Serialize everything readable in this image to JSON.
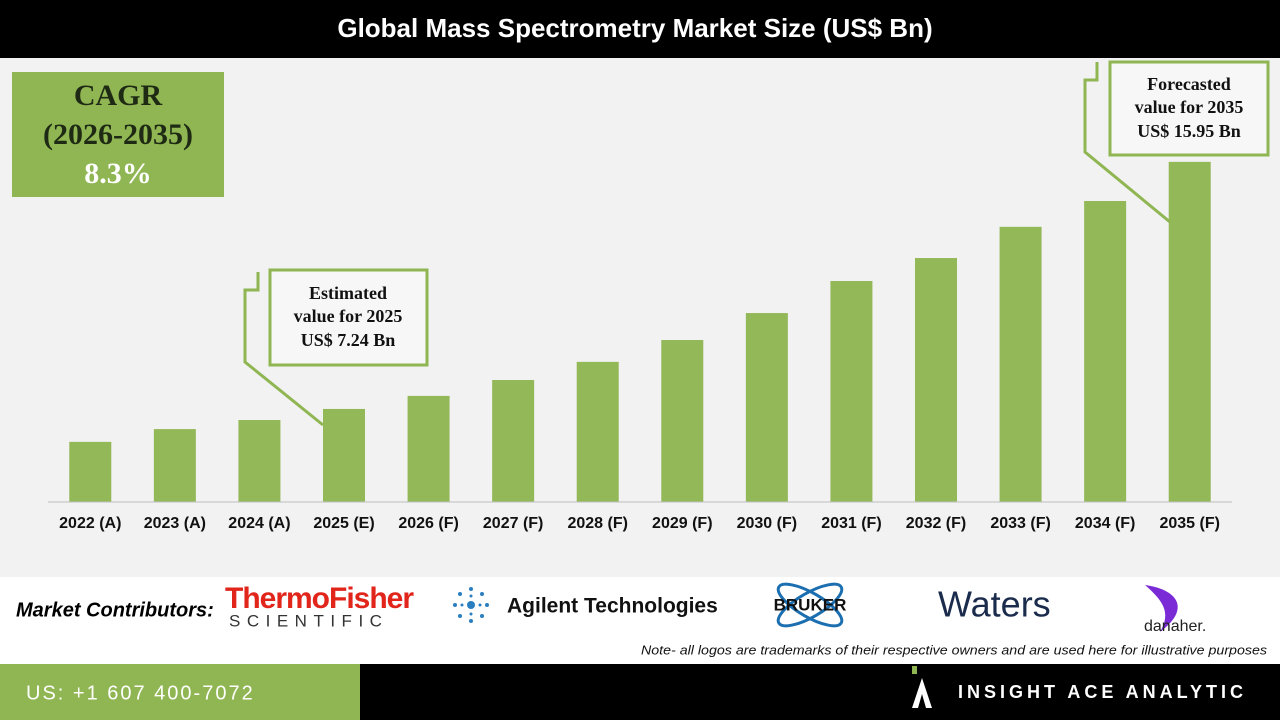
{
  "chart_data": {
    "type": "bar",
    "title": "Global Mass Spectrometry Market Size (US$ Bn)",
    "categories": [
      "2022 (A)",
      "2023 (A)",
      "2024 (A)",
      "2025 (E)",
      "2026 (F)",
      "2027 (F)",
      "2028 (F)",
      "2029 (F)",
      "2030 (F)",
      "2031 (F)",
      "2032 (F)",
      "2033 (F)",
      "2034 (F)",
      "2035 (F)"
    ],
    "values": [
      6.08,
      6.53,
      6.85,
      7.24,
      7.7,
      8.26,
      8.9,
      9.67,
      10.62,
      11.75,
      12.56,
      13.66,
      14.57,
      15.95
    ],
    "color": "#93b858",
    "ylim": [
      3.96,
      19.47
    ],
    "annotations": [
      {
        "lines": [
          "Estimated",
          "value for 2025",
          "US$ 7.24 Bn"
        ]
      },
      {
        "lines": [
          "Forecasted",
          "value for 2035",
          "US$ 15.95 Bn"
        ]
      }
    ]
  },
  "cagr": {
    "label": "CAGR",
    "period": "(2026-2035)",
    "value": "8.3%"
  },
  "contributors": {
    "label": "Market Contributors:",
    "logos": [
      "ThermoFisher",
      "SCIENTIFIC",
      "Agilent Technologies",
      "BRUKER",
      "Waters",
      "danaher."
    ]
  },
  "note": "Note- all logos are trademarks of their respective owners and are used here for illustrative purposes",
  "footer": {
    "phone": "US: +1 607 400-7072",
    "brand": "INSIGHT ACE ANALYTIC"
  }
}
